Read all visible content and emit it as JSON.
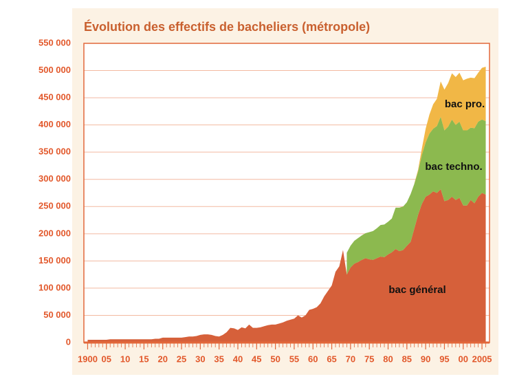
{
  "chart_data": {
    "type": "stacked-area",
    "title": "Évolution des effectifs de bacheliers (métropole)",
    "x": [
      1900,
      1901,
      1902,
      1903,
      1904,
      1905,
      1906,
      1907,
      1908,
      1909,
      1910,
      1911,
      1912,
      1913,
      1914,
      1915,
      1916,
      1917,
      1918,
      1919,
      1920,
      1921,
      1922,
      1923,
      1924,
      1925,
      1926,
      1927,
      1928,
      1929,
      1930,
      1931,
      1932,
      1933,
      1934,
      1935,
      1936,
      1937,
      1938,
      1939,
      1940,
      1941,
      1942,
      1943,
      1944,
      1945,
      1946,
      1947,
      1948,
      1949,
      1950,
      1951,
      1952,
      1953,
      1954,
      1955,
      1956,
      1957,
      1958,
      1959,
      1960,
      1961,
      1962,
      1963,
      1964,
      1965,
      1966,
      1967,
      1968,
      1969,
      1970,
      1971,
      1972,
      1973,
      1974,
      1975,
      1976,
      1977,
      1978,
      1979,
      1980,
      1981,
      1982,
      1983,
      1984,
      1985,
      1986,
      1987,
      1988,
      1989,
      1990,
      1991,
      1992,
      1993,
      1994,
      1995,
      1996,
      1997,
      1998,
      1999,
      2000,
      2001,
      2002,
      2003,
      2004,
      2005,
      2006
    ],
    "series": [
      {
        "name": "bac général",
        "color": "#d6603a",
        "values": [
          5000,
          5000,
          5000,
          5000,
          5000,
          5000,
          6000,
          6000,
          6000,
          6000,
          6000,
          6000,
          6000,
          6000,
          6000,
          6000,
          6000,
          6000,
          7000,
          7000,
          9000,
          9000,
          9000,
          9000,
          9000,
          9000,
          10000,
          11000,
          11000,
          12000,
          14000,
          15000,
          15000,
          14000,
          12000,
          11000,
          14000,
          19000,
          27000,
          26000,
          23000,
          28000,
          26000,
          33000,
          27000,
          27000,
          28000,
          30000,
          32000,
          33000,
          33000,
          35000,
          37000,
          40000,
          42000,
          44000,
          50000,
          46000,
          50000,
          60000,
          62000,
          65000,
          72000,
          85000,
          95000,
          105000,
          130000,
          140000,
          170000,
          125000,
          138000,
          145000,
          148000,
          152000,
          155000,
          153000,
          152000,
          155000,
          158000,
          157000,
          162000,
          166000,
          172000,
          168000,
          170000,
          178000,
          185000,
          210000,
          235000,
          255000,
          268000,
          272000,
          278000,
          275000,
          282000,
          260000,
          262000,
          268000,
          262000,
          266000,
          252000,
          252000,
          262000,
          256000,
          268000,
          275000,
          272000
        ]
      },
      {
        "name": "bac techno.",
        "color": "#8cb94f",
        "values": [
          null,
          null,
          null,
          null,
          null,
          null,
          null,
          null,
          null,
          null,
          null,
          null,
          null,
          null,
          null,
          null,
          null,
          null,
          null,
          null,
          null,
          null,
          null,
          null,
          null,
          null,
          null,
          null,
          null,
          null,
          null,
          null,
          null,
          null,
          null,
          null,
          null,
          null,
          null,
          null,
          null,
          null,
          null,
          null,
          null,
          null,
          null,
          null,
          null,
          null,
          null,
          null,
          null,
          null,
          null,
          null,
          null,
          null,
          null,
          null,
          null,
          null,
          null,
          null,
          null,
          null,
          null,
          null,
          null,
          40000,
          40000,
          42000,
          44000,
          45000,
          46000,
          50000,
          53000,
          55000,
          58000,
          60000,
          60000,
          62000,
          76000,
          80000,
          80000,
          80000,
          88000,
          82000,
          80000,
          90000,
          100000,
          112000,
          115000,
          123000,
          133000,
          130000,
          135000,
          142000,
          138000,
          140000,
          138000,
          138000,
          133000,
          138000,
          138000,
          135000,
          135000
        ]
      },
      {
        "name": "bac pro.",
        "color": "#f1b746",
        "values": [
          null,
          null,
          null,
          null,
          null,
          null,
          null,
          null,
          null,
          null,
          null,
          null,
          null,
          null,
          null,
          null,
          null,
          null,
          null,
          null,
          null,
          null,
          null,
          null,
          null,
          null,
          null,
          null,
          null,
          null,
          null,
          null,
          null,
          null,
          null,
          null,
          null,
          null,
          null,
          null,
          null,
          null,
          null,
          null,
          null,
          null,
          null,
          null,
          null,
          null,
          null,
          null,
          null,
          null,
          null,
          null,
          null,
          null,
          null,
          null,
          null,
          null,
          null,
          null,
          null,
          null,
          null,
          null,
          null,
          null,
          null,
          null,
          null,
          null,
          null,
          null,
          null,
          null,
          null,
          null,
          null,
          null,
          null,
          null,
          null,
          null,
          null,
          1000,
          3000,
          12000,
          25000,
          35000,
          45000,
          50000,
          65000,
          75000,
          80000,
          85000,
          88000,
          90000,
          92000,
          95000,
          92000,
          92000,
          90000,
          95000,
          100000
        ]
      }
    ],
    "xlim": [
      1899,
      2007
    ],
    "xticks": [
      {
        "value": 1900,
        "label": "1900"
      },
      {
        "value": 1905,
        "label": "05"
      },
      {
        "value": 1910,
        "label": "10"
      },
      {
        "value": 1915,
        "label": "15"
      },
      {
        "value": 1920,
        "label": "20"
      },
      {
        "value": 1925,
        "label": "25"
      },
      {
        "value": 1930,
        "label": "30"
      },
      {
        "value": 1935,
        "label": "35"
      },
      {
        "value": 1940,
        "label": "40"
      },
      {
        "value": 1945,
        "label": "45"
      },
      {
        "value": 1950,
        "label": "50"
      },
      {
        "value": 1955,
        "label": "55"
      },
      {
        "value": 1960,
        "label": "60"
      },
      {
        "value": 1965,
        "label": "65"
      },
      {
        "value": 1970,
        "label": "70"
      },
      {
        "value": 1975,
        "label": "75"
      },
      {
        "value": 1980,
        "label": "80"
      },
      {
        "value": 1985,
        "label": "85"
      },
      {
        "value": 1990,
        "label": "90"
      },
      {
        "value": 1995,
        "label": "95"
      },
      {
        "value": 2000,
        "label": "00"
      },
      {
        "value": 2005,
        "label": "2005"
      }
    ],
    "ylim": [
      0,
      550000
    ],
    "yticks": [
      0,
      {
        "value": 50000,
        "label": "50 000"
      },
      {
        "value": 100000,
        "label": "100 000"
      },
      {
        "value": 150000,
        "label": "150 000"
      },
      {
        "value": 200000,
        "label": "200 000"
      },
      {
        "value": 250000,
        "label": "250 000"
      },
      {
        "value": 300000,
        "label": "300 000"
      },
      {
        "value": 350000,
        "label": "350 000"
      },
      {
        "value": 400000,
        "label": "400 000"
      },
      {
        "value": 450000,
        "label": "450 000"
      },
      {
        "value": 500000,
        "label": "500 000"
      },
      {
        "value": 550000,
        "label": "550 000"
      }
    ],
    "grid": true
  }
}
